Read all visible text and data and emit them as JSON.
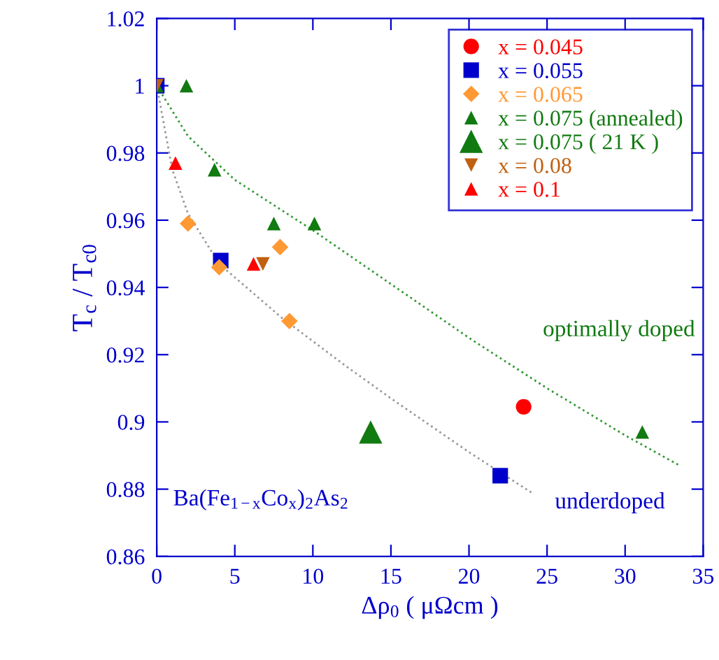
{
  "chart_data": {
    "type": "scatter",
    "xlabel": "Δρ$_{0}$ ( μΩcm )",
    "ylabel": "T$_{c}$ / T$_{c0}$",
    "xlim": [
      0,
      35
    ],
    "ylim": [
      0.86,
      1.02
    ],
    "xticks": [
      0,
      5,
      10,
      15,
      20,
      25,
      30,
      35
    ],
    "yticks": [
      0.86,
      0.88,
      0.9,
      0.92,
      0.94,
      0.96,
      0.98,
      1,
      1.02
    ],
    "grid": false,
    "legend": "top right",
    "series": [
      {
        "name": "x = 0.045",
        "color": "#ff0000",
        "marker": "circle",
        "x": [
          23.5
        ],
        "values": [
          0.9045
        ]
      },
      {
        "name": "x = 0.055",
        "color": "#0000cc",
        "marker": "square",
        "x": [
          0,
          4.1,
          22
        ],
        "values": [
          1.0,
          0.948,
          0.884
        ]
      },
      {
        "name": "x = 0.065",
        "color": "#ff9933",
        "marker": "diamond",
        "x": [
          2,
          4,
          7.9,
          8.5
        ],
        "values": [
          0.959,
          0.946,
          0.952,
          0.93
        ]
      },
      {
        "name": "x = 0.075 (annealed)",
        "color": "#117a11",
        "marker": "triangle",
        "x": [
          0,
          1.9,
          3.7,
          7.5,
          10.1,
          31.1
        ],
        "values": [
          1.0,
          1.0,
          0.975,
          0.959,
          0.959,
          0.897
        ]
      },
      {
        "name": "x = 0.075 ( 21 K )",
        "color": "#117a11",
        "marker": "triangle",
        "x": [
          13.7
        ],
        "values": [
          0.897
        ]
      },
      {
        "name": "x = 0.08",
        "color": "#c06010",
        "marker": "triangle_down",
        "x": [
          0,
          6.8
        ],
        "values": [
          1.0,
          0.947
        ]
      },
      {
        "name": "x = 0.1",
        "color": "#ff0000",
        "marker": "triangle",
        "x": [
          1.2,
          6.2
        ],
        "values": [
          0.977,
          0.947
        ]
      },
      {
        "type": "line",
        "color": "#339933",
        "line_style": "dotted",
        "marker": "none",
        "x": [
          0,
          2,
          5,
          10,
          15,
          20,
          25,
          30,
          33.5
        ],
        "values": [
          1.0,
          0.985,
          0.972,
          0.957,
          0.941,
          0.925,
          0.91,
          0.896,
          0.887
        ]
      },
      {
        "type": "line",
        "color": "#999999",
        "line_style": "dotted",
        "marker": "none",
        "x": [
          0,
          1,
          2,
          4,
          8,
          12,
          15,
          20,
          24
        ],
        "values": [
          1.0,
          0.975,
          0.962,
          0.947,
          0.931,
          0.917,
          0.907,
          0.891,
          0.879
        ]
      }
    ],
    "annotations": [
      "optimally doped",
      "underdoped",
      "Ba(Fe$_{1−x}$Co$_{x}$)$_{2}$As$_{2}$"
    ]
  }
}
